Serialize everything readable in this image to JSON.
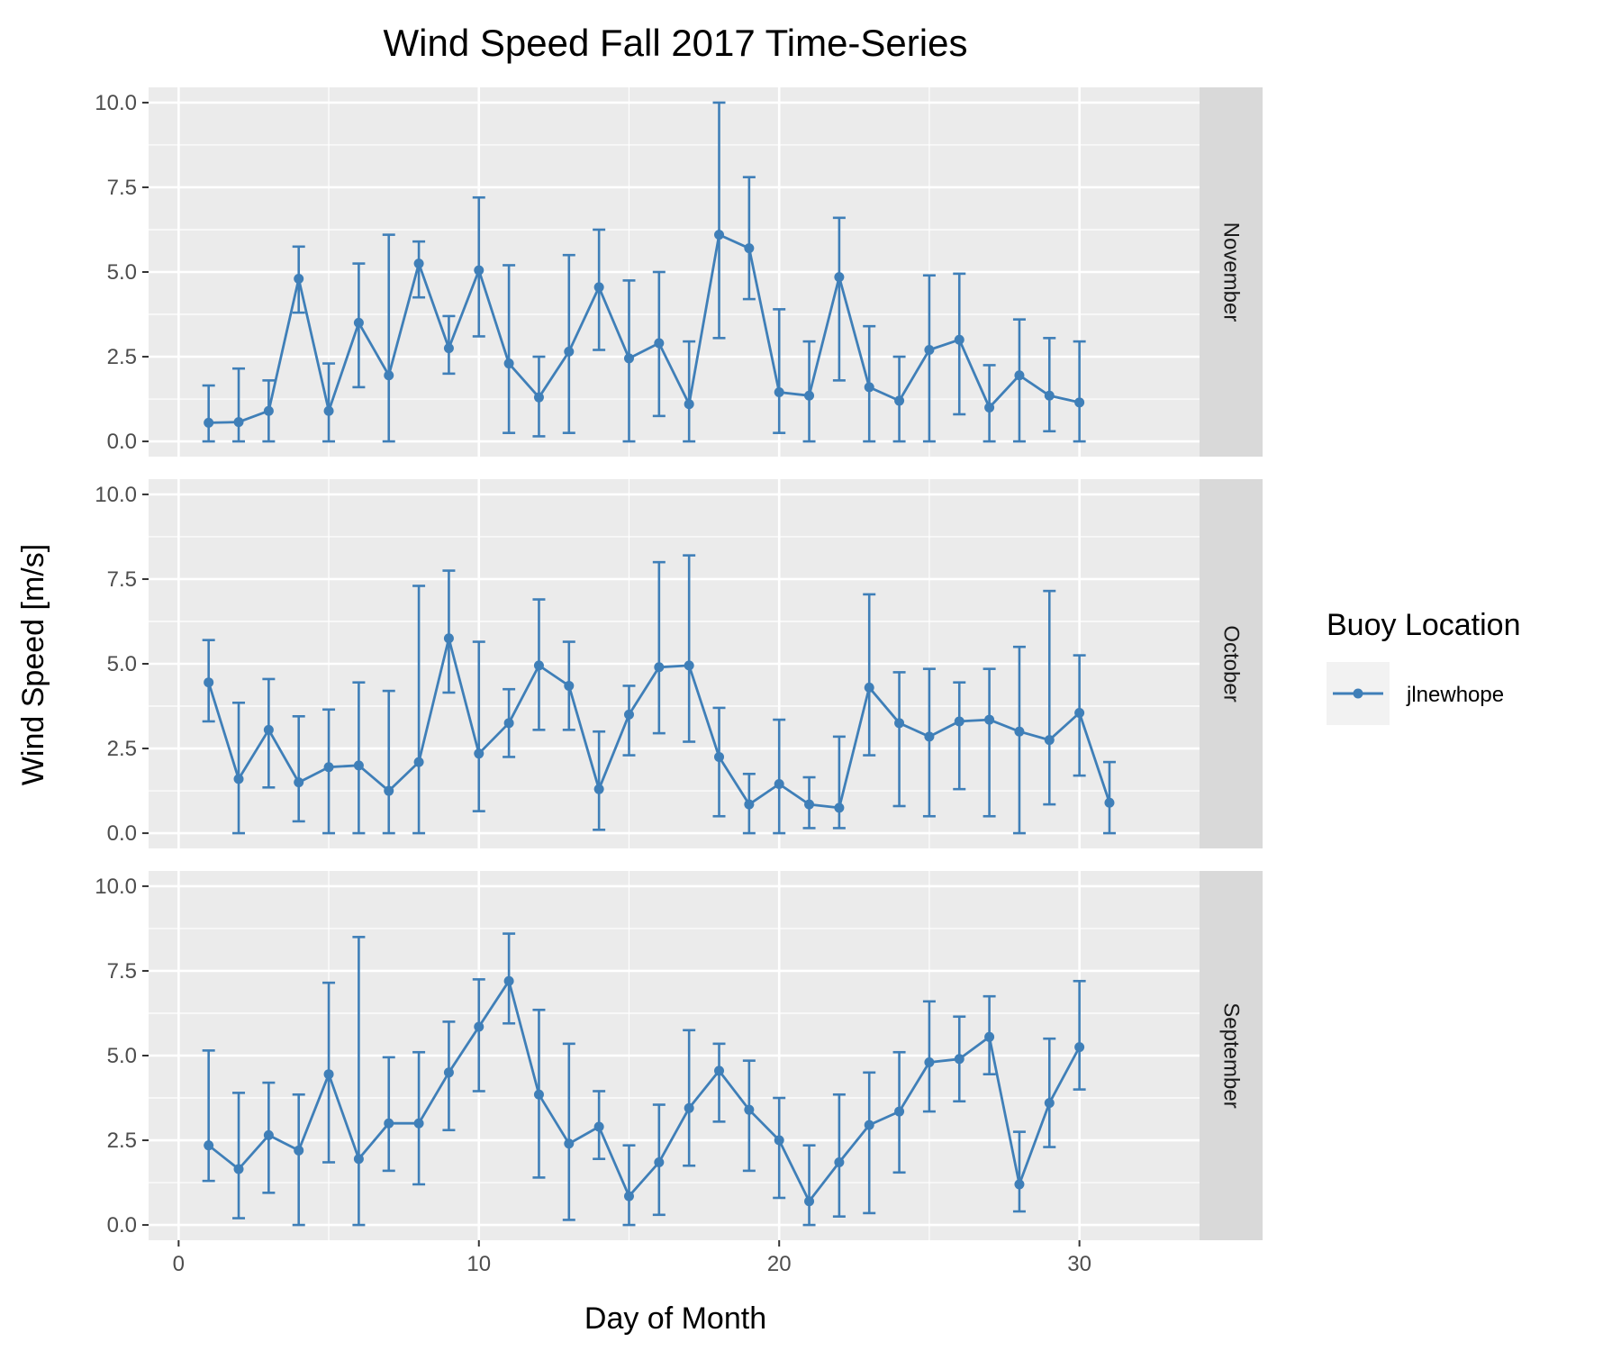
{
  "chart_data": {
    "type": "line",
    "title": "Wind Speed Fall 2017 Time-Series",
    "xlabel": "Day of Month",
    "ylabel": "Wind Speed [m/s]",
    "xlim": [
      -1,
      34
    ],
    "ylim": [
      -0.45,
      10.45
    ],
    "x_ticks": [
      0,
      10,
      20,
      30
    ],
    "y_ticks": [
      0.0,
      2.5,
      5.0,
      7.5,
      10.0
    ],
    "y_tick_labels": [
      "0.0",
      "2.5",
      "5.0",
      "7.5",
      "10.0"
    ],
    "grid": true,
    "legend": {
      "title": "Buoy Location",
      "position": "right",
      "entries": [
        "jlnewhope"
      ]
    },
    "colors": {
      "series": "#3f7fb8",
      "panel_bg": "#ebebeb",
      "strip_bg": "#d9d9d9",
      "grid": "#ffffff"
    },
    "facets": [
      {
        "label": "November",
        "series": [
          {
            "name": "jlnewhope",
            "x": [
              1,
              2,
              3,
              4,
              5,
              6,
              7,
              8,
              9,
              10,
              11,
              12,
              13,
              14,
              15,
              16,
              17,
              18,
              19,
              20,
              21,
              22,
              23,
              24,
              25,
              26,
              27,
              28,
              29,
              30
            ],
            "y": [
              0.55,
              0.57,
              0.9,
              4.8,
              0.9,
              3.5,
              1.95,
              5.25,
              2.75,
              5.05,
              2.3,
              1.3,
              2.65,
              4.55,
              2.45,
              2.9,
              1.1,
              6.1,
              5.7,
              1.45,
              1.35,
              4.85,
              1.6,
              1.2,
              2.7,
              3.0,
              1.0,
              1.95,
              1.35,
              1.15
            ],
            "ymin": [
              0,
              0,
              0,
              3.8,
              0,
              1.6,
              0,
              4.25,
              2.0,
              3.1,
              0.25,
              0.15,
              0.25,
              2.7,
              0,
              0.75,
              0,
              3.05,
              4.2,
              0.25,
              0,
              1.8,
              0,
              0,
              0,
              0.8,
              0,
              0,
              0.3,
              0
            ],
            "ymax": [
              1.65,
              2.15,
              1.8,
              5.75,
              2.3,
              5.25,
              6.1,
              5.9,
              3.7,
              7.2,
              5.2,
              2.5,
              5.5,
              6.25,
              4.75,
              5.0,
              2.95,
              10.0,
              7.8,
              3.9,
              2.95,
              6.6,
              3.4,
              2.5,
              4.9,
              4.95,
              2.25,
              3.6,
              3.05,
              2.95
            ]
          }
        ]
      },
      {
        "label": "October",
        "series": [
          {
            "name": "jlnewhope",
            "x": [
              1,
              2,
              3,
              4,
              5,
              6,
              7,
              8,
              9,
              10,
              11,
              12,
              13,
              14,
              15,
              16,
              17,
              18,
              19,
              20,
              21,
              22,
              23,
              24,
              25,
              26,
              27,
              28,
              29,
              30,
              31
            ],
            "y": [
              4.45,
              1.6,
              3.05,
              1.5,
              1.95,
              2.0,
              1.25,
              2.1,
              5.75,
              2.35,
              3.25,
              4.95,
              4.35,
              1.3,
              3.5,
              4.9,
              4.95,
              2.25,
              0.85,
              1.45,
              0.85,
              0.75,
              4.3,
              3.25,
              2.85,
              3.3,
              3.35,
              3.0,
              2.75,
              3.55,
              0.9
            ],
            "ymin": [
              3.3,
              0,
              1.35,
              0.35,
              0,
              0,
              0,
              0,
              4.15,
              0.65,
              2.25,
              3.05,
              3.05,
              0.1,
              2.3,
              2.95,
              2.7,
              0.5,
              0,
              0,
              0.15,
              0.15,
              2.3,
              0.8,
              0.5,
              1.3,
              0.5,
              0,
              0.85,
              1.7,
              0
            ],
            "ymax": [
              5.7,
              3.85,
              4.55,
              3.45,
              3.65,
              4.45,
              4.2,
              7.3,
              7.75,
              5.65,
              4.25,
              6.9,
              5.65,
              3.0,
              4.35,
              8.0,
              8.2,
              3.7,
              1.75,
              3.35,
              1.65,
              2.85,
              7.05,
              4.75,
              4.85,
              4.45,
              4.85,
              5.5,
              7.15,
              5.25,
              2.1
            ]
          }
        ]
      },
      {
        "label": "September",
        "series": [
          {
            "name": "jlnewhope",
            "x": [
              1,
              2,
              3,
              4,
              5,
              6,
              7,
              8,
              9,
              10,
              11,
              12,
              13,
              14,
              15,
              16,
              17,
              18,
              19,
              20,
              21,
              22,
              23,
              24,
              25,
              26,
              27,
              28,
              29,
              30
            ],
            "y": [
              2.35,
              1.65,
              2.65,
              2.2,
              4.45,
              1.95,
              3.0,
              3.0,
              4.5,
              5.85,
              7.2,
              3.85,
              2.4,
              2.9,
              0.85,
              1.85,
              3.45,
              4.55,
              3.4,
              2.5,
              0.7,
              1.85,
              2.95,
              3.35,
              4.8,
              4.9,
              5.55,
              1.2,
              3.6,
              5.25
            ],
            "ymin": [
              1.3,
              0.2,
              0.95,
              0,
              1.85,
              0,
              1.6,
              1.2,
              2.8,
              3.95,
              5.95,
              1.4,
              0.15,
              1.95,
              0,
              0.3,
              1.75,
              3.05,
              1.6,
              0.8,
              0,
              0.25,
              0.35,
              1.55,
              3.35,
              3.65,
              4.45,
              0.4,
              2.3,
              4.0
            ],
            "ymax": [
              5.15,
              3.9,
              4.2,
              3.85,
              7.15,
              8.5,
              4.95,
              5.1,
              6.0,
              7.25,
              8.6,
              6.35,
              5.35,
              3.95,
              2.35,
              3.55,
              5.75,
              5.35,
              4.85,
              3.75,
              2.35,
              3.85,
              4.5,
              5.1,
              6.6,
              6.15,
              6.75,
              2.75,
              5.5,
              7.2
            ]
          }
        ]
      }
    ]
  }
}
